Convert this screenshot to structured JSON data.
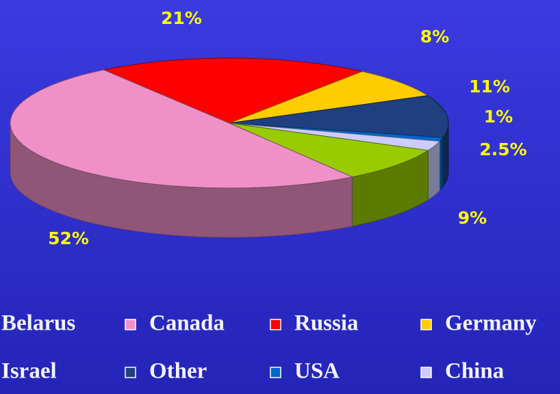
{
  "chart_data": {
    "type": "pie",
    "categories": [
      "Belarus",
      "Canada",
      "Russia",
      "Germany",
      "Israel",
      "Other",
      "USA",
      "China"
    ],
    "values": [
      null,
      52,
      21,
      8,
      9,
      11,
      1,
      2.5
    ],
    "value_labels": [
      null,
      "52%",
      "21%",
      "8%",
      "9%",
      "11%",
      "1%",
      "2.5%"
    ],
    "colors": [
      null,
      "#f090c8",
      "#ff0000",
      "#ffcc00",
      "#99cc00",
      "#1f3f7f",
      "#0066cc",
      "#ccccff"
    ],
    "three_d": true,
    "legend": "bottom"
  }
}
